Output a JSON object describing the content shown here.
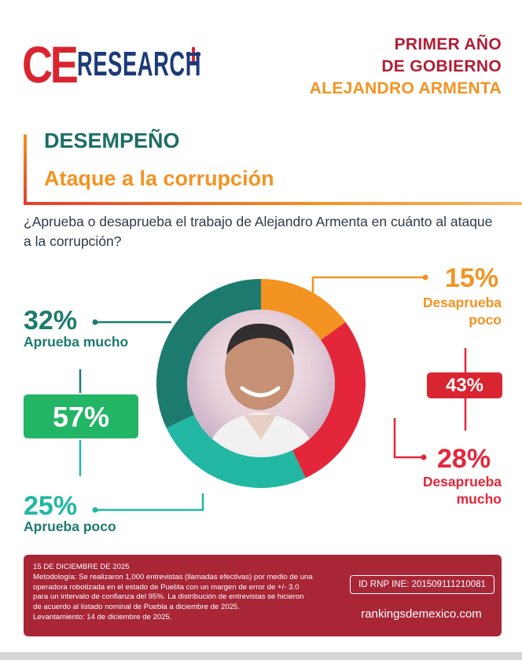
{
  "brand": {
    "logo_ce": "CE",
    "logo_research": "RESEARCH"
  },
  "header": {
    "line1": "PRIMER AÑO",
    "line2": "DE GOBIERNO",
    "line3": "ALEJANDRO ARMENTA"
  },
  "section": {
    "title": "DESEMPEÑO",
    "subtitle": "Ataque a la corrupción"
  },
  "question": "¿Aprueba o desaprueba el trabajo de Alejandro Armenta en cuánto al ataque a la corrupción?",
  "colors": {
    "aprueba_mucho": "#1d7a6f",
    "aprueba_poco": "#22b7a2",
    "desaprueba_poco": "#f39322",
    "desaprueba_mucho": "#e4263a",
    "total_aprueba": "#22b565",
    "total_desaprueba": "#d9252f"
  },
  "chart_data": {
    "type": "pie",
    "variant": "donut",
    "series": [
      {
        "name": "Desaprueba poco",
        "value": 15,
        "label": "15%"
      },
      {
        "name": "Desaprueba mucho",
        "value": 28,
        "label": "28%"
      },
      {
        "name": "Aprueba poco",
        "value": 25,
        "label": "25%"
      },
      {
        "name": "Aprueba mucho",
        "value": 32,
        "label": "32%"
      }
    ],
    "totals": [
      {
        "group": "Aprueba",
        "value": 57,
        "label": "57%"
      },
      {
        "group": "Desaprueba",
        "value": 43,
        "label": "43%"
      }
    ]
  },
  "labels": {
    "desaprueba_poco_pct": "15%",
    "desaprueba_poco_l1": "Desaprueba",
    "desaprueba_poco_l2": "poco",
    "desaprueba_mucho_pct": "28%",
    "desaprueba_mucho_l1": "Desaprueba",
    "desaprueba_mucho_l2": "mucho",
    "aprueba_mucho_pct": "32%",
    "aprueba_mucho_label": "Aprueba mucho",
    "aprueba_poco_pct": "25%",
    "aprueba_poco_label": "Aprueba poco",
    "total_aprueba": "57%",
    "total_desaprueba": "43%"
  },
  "footer": {
    "date": "15 DE DICIEMBRE DE 2025",
    "method_l1": "Metodología: Se realizaron 1,000 entrevistas (llamadas efectivas) por medio de una",
    "method_l2": "operadora robotizada en el estado de Puebla con un margen de error de +/- 3.0",
    "method_l3": "para un intervalo de confianza del 95%. La distribución de entrevistas se hicieron",
    "method_l4": "de acuerdo al listado nominal de Puebla a diciembre de 2025.",
    "method_l5": "Levantamiento: 14 de diciembre de 2025.",
    "id_rnp": "ID RNP INE: 2015091112100 81",
    "website": "rankingsdemexico.com"
  }
}
